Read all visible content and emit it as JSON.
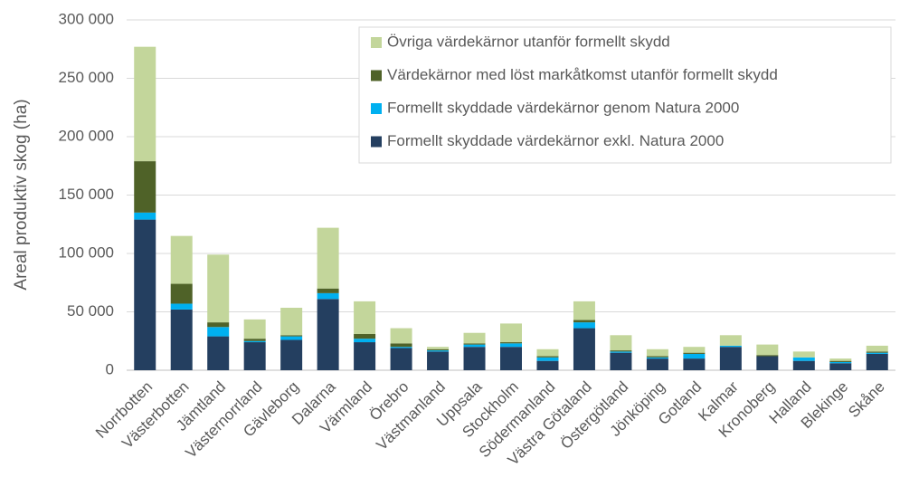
{
  "chart_data": {
    "type": "stacked_bar",
    "ylabel": "Areal produktiv skog (ha)",
    "categories": [
      "Norrbotten",
      "Västerbotten",
      "Jämtland",
      "Västernorrland",
      "Gävleborg",
      "Dalarna",
      "Värmland",
      "Örebro",
      "Västmanland",
      "Uppsala",
      "Stockholm",
      "Södermanland",
      "Västra Götaland",
      "Östergötland",
      "Jönköping",
      "Gotland",
      "Kalmar",
      "Kronoberg",
      "Halland",
      "Blekinge",
      "Skåne"
    ],
    "series": [
      {
        "name": "Formellt skyddade värdekärnor exkl. Natura 2000",
        "color": "#243f60",
        "values": [
          129000,
          52000,
          29000,
          24000,
          26000,
          61000,
          24000,
          19000,
          16000,
          20000,
          20000,
          8000,
          36000,
          15000,
          10000,
          10000,
          20000,
          12000,
          8000,
          6000,
          14000
        ]
      },
      {
        "name": "Formellt skyddade värdekärnor genom Natura 2000",
        "color": "#00b0f0",
        "values": [
          6000,
          5000,
          8000,
          1000,
          3000,
          5000,
          3000,
          1000,
          1000,
          2000,
          3000,
          3000,
          5000,
          1000,
          1000,
          4000,
          1000,
          0,
          3000,
          1000,
          1000
        ]
      },
      {
        "name": "Värdekärnor med löst markåtkomst utanför formellt skydd",
        "color": "#4f6228",
        "values": [
          44000,
          17000,
          4000,
          2000,
          1000,
          4000,
          4000,
          3000,
          1000,
          1000,
          1000,
          1000,
          2000,
          1000,
          1000,
          1000,
          0,
          1000,
          0,
          1000,
          1000
        ]
      },
      {
        "name": "Övriga värdekärnor utanför formellt skydd",
        "color": "#c3d69b",
        "values": [
          98000,
          41000,
          58000,
          16500,
          23500,
          52000,
          28000,
          13000,
          2000,
          9000,
          16000,
          6000,
          16000,
          13000,
          6000,
          5000,
          9000,
          9000,
          5000,
          2000,
          5000
        ]
      }
    ],
    "ylim": [
      0,
      300000
    ],
    "yticks": [
      0,
      {
        "value": 50000,
        "label": "50 000"
      },
      {
        "value": 100000,
        "label": "100 000"
      },
      {
        "value": 150000,
        "label": "150 000"
      },
      {
        "value": 200000,
        "label": "200 000"
      },
      {
        "value": 250000,
        "label": "250 000"
      },
      {
        "value": 300000,
        "label": "300 000"
      }
    ],
    "grid": true,
    "legend": "upper right"
  }
}
